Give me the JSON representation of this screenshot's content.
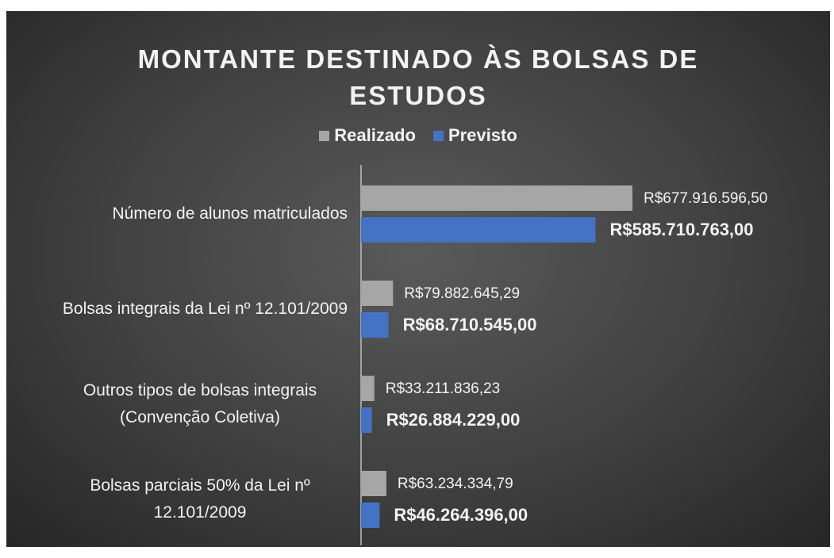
{
  "chart_data": {
    "type": "bar",
    "orientation": "horizontal",
    "title": "MONTANTE DESTINADO ÀS BOLSAS DE ESTUDOS",
    "categories": [
      "Número de alunos matriculados",
      "Bolsas integrais da Lei nº 12.101/2009",
      "Outros tipos de bolsas integrais (Convenção Coletiva)",
      "Bolsas parciais 50% da Lei nº 12.101/2009"
    ],
    "series": [
      {
        "name": "Realizado",
        "color": "#a6a6a6",
        "values": [
          677916596.5,
          79882645.29,
          33211836.23,
          63234334.79
        ],
        "value_labels": [
          "R$677.916.596,50",
          "R$79.882.645,29",
          "R$33.211.836,23",
          "R$63.234.334,79"
        ]
      },
      {
        "name": "Previsto",
        "color": "#4472c4",
        "values": [
          585710763.0,
          68710545.0,
          26884229.0,
          46264396.0
        ],
        "value_labels": [
          "R$585.710.763,00",
          "R$68.710.545,00",
          "R$26.884.229,00",
          "R$46.264.396,00"
        ]
      }
    ],
    "legend": "top",
    "grid": false
  }
}
